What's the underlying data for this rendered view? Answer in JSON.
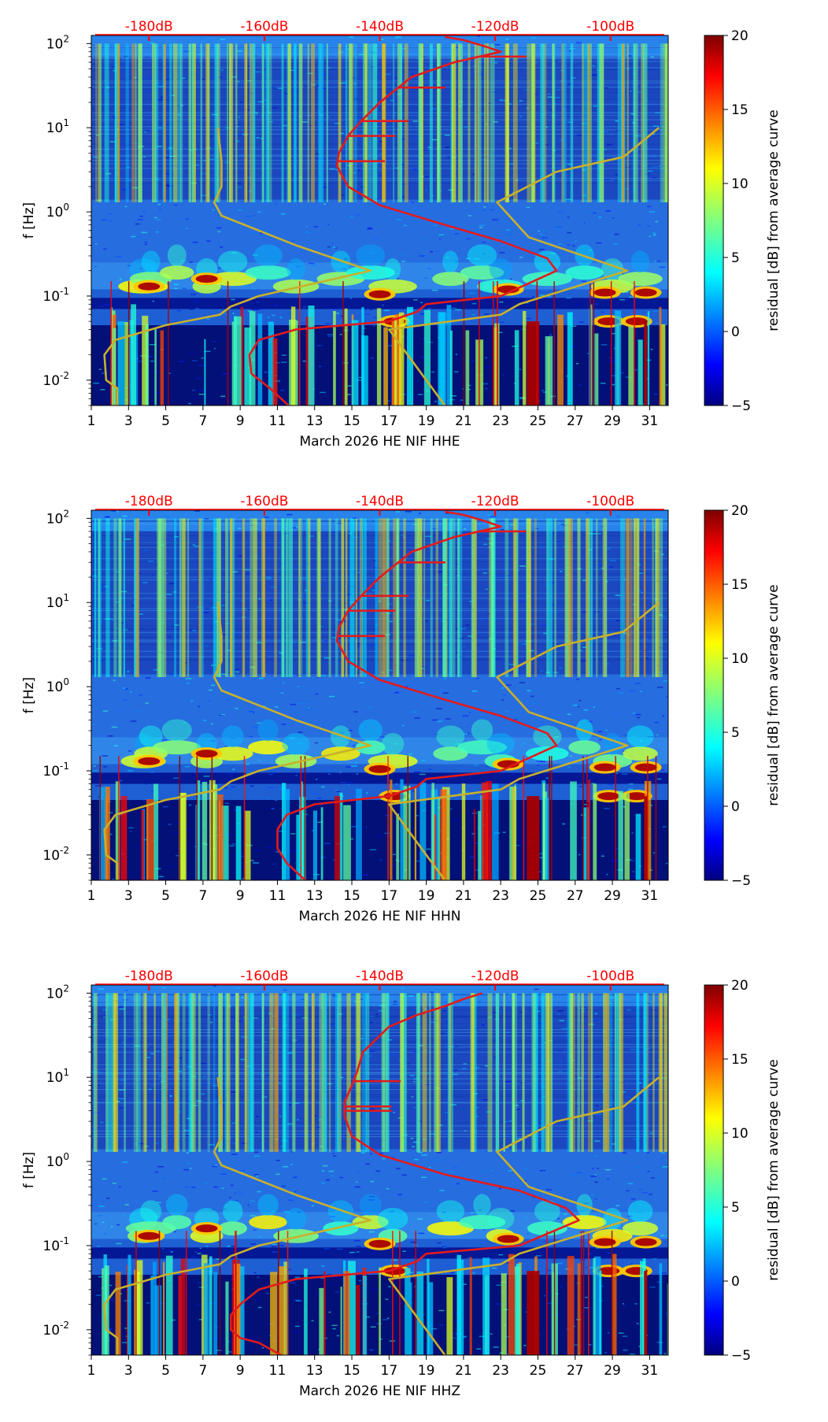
{
  "figure": {
    "colorbar_label": "residual [dB] from average curve",
    "colorbar_range": [
      -5,
      20
    ],
    "colorbar_ticks": [
      -5,
      0,
      5,
      10,
      15,
      20
    ],
    "colormap": [
      "#00007f",
      "#0000ff",
      "#007fff",
      "#00ffff",
      "#7fff7f",
      "#ffff00",
      "#ff7f00",
      "#ff0000",
      "#7f0000"
    ],
    "background_color": "#1f5fd4",
    "colors": {
      "db_axis": "#ff0000",
      "noise_model": "#c8b02c",
      "median_psd": "#e31a1c"
    }
  },
  "chart_data": [
    {
      "type": "heatmap",
      "xlabel": "March 2026 HE NIF  HHE",
      "ylabel": "f [Hz]",
      "x_range": [
        1,
        32
      ],
      "x_ticks": [
        1,
        3,
        5,
        7,
        9,
        11,
        13,
        15,
        17,
        19,
        21,
        23,
        25,
        27,
        29,
        31
      ],
      "y_range_hz": [
        0.005,
        125
      ],
      "y_ticks": [
        "10^-2",
        "10^-1",
        "10^0",
        "10^1",
        "10^2"
      ],
      "top_axis_labels": [
        "-180dB",
        "-160dB",
        "-140dB",
        "-120dB",
        "-100dB"
      ],
      "top_axis_positions_day": [
        4.1,
        10.3,
        16.5,
        22.7,
        28.9
      ],
      "low_noise_model": [
        [
          2.4,
          0.005
        ],
        [
          2.4,
          0.008
        ],
        [
          1.8,
          0.01
        ],
        [
          1.7,
          0.02
        ],
        [
          2.3,
          0.03
        ],
        [
          5.0,
          0.045
        ],
        [
          7.9,
          0.06
        ],
        [
          8.5,
          0.075
        ],
        [
          10.0,
          0.1
        ],
        [
          16.0,
          0.2
        ],
        [
          12.0,
          0.4
        ],
        [
          8.0,
          0.9
        ],
        [
          7.6,
          1.3
        ],
        [
          8.0,
          2.0
        ],
        [
          8.0,
          4.0
        ],
        [
          7.8,
          10
        ]
      ],
      "high_noise_model": [
        [
          20.0,
          0.005
        ],
        [
          17.0,
          0.04
        ],
        [
          23.0,
          0.06
        ],
        [
          24.0,
          0.08
        ],
        [
          29.8,
          0.2
        ],
        [
          24.5,
          0.5
        ],
        [
          22.8,
          1.3
        ],
        [
          26.0,
          3.0
        ],
        [
          29.6,
          4.5
        ],
        [
          31.5,
          10
        ]
      ],
      "median_psd": [
        [
          11.6,
          0.005
        ],
        [
          10.6,
          0.008
        ],
        [
          9.6,
          0.012
        ],
        [
          9.5,
          0.02
        ],
        [
          10.0,
          0.03
        ],
        [
          12.0,
          0.04
        ],
        [
          17.0,
          0.05
        ],
        [
          18.5,
          0.065
        ],
        [
          19.0,
          0.08
        ],
        [
          23.0,
          0.1
        ],
        [
          26.0,
          0.2
        ],
        [
          25.5,
          0.28
        ],
        [
          23.0,
          0.45
        ],
        [
          20.0,
          0.7
        ],
        [
          16.5,
          1.2
        ],
        [
          14.8,
          2.0
        ],
        [
          14.2,
          3.5
        ],
        [
          14.3,
          5.0
        ],
        [
          14.8,
          8.0
        ],
        [
          15.5,
          12.0
        ],
        [
          16.5,
          20.0
        ],
        [
          18.2,
          40.0
        ],
        [
          20.5,
          60.0
        ],
        [
          23.0,
          80.0
        ],
        [
          22.0,
          95.0
        ],
        [
          21.0,
          110.0
        ],
        [
          20.0,
          120.0
        ]
      ],
      "median_psd_spike_y": [
        4.0,
        8.0,
        12.0,
        30.0,
        70.0
      ]
    },
    {
      "type": "heatmap",
      "xlabel": "March 2026 HE NIF  HHN",
      "ylabel": "f [Hz]",
      "x_range": [
        1,
        32
      ],
      "x_ticks": [
        1,
        3,
        5,
        7,
        9,
        11,
        13,
        15,
        17,
        19,
        21,
        23,
        25,
        27,
        29,
        31
      ],
      "y_range_hz": [
        0.005,
        125
      ],
      "y_ticks": [
        "10^-2",
        "10^-1",
        "10^0",
        "10^1",
        "10^2"
      ],
      "top_axis_labels": [
        "-180dB",
        "-160dB",
        "-140dB",
        "-120dB",
        "-100dB"
      ],
      "top_axis_positions_day": [
        4.1,
        10.3,
        16.5,
        22.7,
        28.9
      ],
      "low_noise_model": [
        [
          2.4,
          0.005
        ],
        [
          2.4,
          0.008
        ],
        [
          1.8,
          0.01
        ],
        [
          1.7,
          0.02
        ],
        [
          2.3,
          0.03
        ],
        [
          5.0,
          0.045
        ],
        [
          7.9,
          0.06
        ],
        [
          8.5,
          0.075
        ],
        [
          10.0,
          0.1
        ],
        [
          16.0,
          0.2
        ],
        [
          12.0,
          0.4
        ],
        [
          8.0,
          0.9
        ],
        [
          7.6,
          1.3
        ],
        [
          8.0,
          2.0
        ],
        [
          8.0,
          4.0
        ],
        [
          7.8,
          10
        ]
      ],
      "high_noise_model": [
        [
          20.0,
          0.005
        ],
        [
          17.0,
          0.04
        ],
        [
          23.0,
          0.06
        ],
        [
          24.0,
          0.08
        ],
        [
          29.8,
          0.2
        ],
        [
          24.5,
          0.5
        ],
        [
          22.8,
          1.3
        ],
        [
          26.0,
          3.0
        ],
        [
          29.6,
          4.5
        ],
        [
          31.5,
          10
        ]
      ],
      "median_psd": [
        [
          12.5,
          0.005
        ],
        [
          11.5,
          0.008
        ],
        [
          11.0,
          0.012
        ],
        [
          11.0,
          0.02
        ],
        [
          11.5,
          0.03
        ],
        [
          13.0,
          0.04
        ],
        [
          17.0,
          0.05
        ],
        [
          18.5,
          0.065
        ],
        [
          19.0,
          0.08
        ],
        [
          23.0,
          0.1
        ],
        [
          26.0,
          0.2
        ],
        [
          25.5,
          0.28
        ],
        [
          23.0,
          0.45
        ],
        [
          20.0,
          0.7
        ],
        [
          16.5,
          1.2
        ],
        [
          14.8,
          2.0
        ],
        [
          14.2,
          3.5
        ],
        [
          14.3,
          5.0
        ],
        [
          14.8,
          8.0
        ],
        [
          15.5,
          12.0
        ],
        [
          16.5,
          20.0
        ],
        [
          18.2,
          40.0
        ],
        [
          20.5,
          60.0
        ],
        [
          23.0,
          80.0
        ],
        [
          22.0,
          95.0
        ],
        [
          21.0,
          110.0
        ],
        [
          20.0,
          120.0
        ]
      ],
      "median_psd_spike_y": [
        4.0,
        8.0,
        12.0,
        30.0,
        70.0
      ]
    },
    {
      "type": "heatmap",
      "xlabel": "March 2026 HE NIF  HHZ",
      "ylabel": "f [Hz]",
      "x_range": [
        1,
        32
      ],
      "x_ticks": [
        1,
        3,
        5,
        7,
        9,
        11,
        13,
        15,
        17,
        19,
        21,
        23,
        25,
        27,
        29,
        31
      ],
      "y_range_hz": [
        0.005,
        125
      ],
      "y_ticks": [
        "10^-2",
        "10^-1",
        "10^0",
        "10^1",
        "10^2"
      ],
      "top_axis_labels": [
        "-180dB",
        "-160dB",
        "-140dB",
        "-120dB",
        "-100dB"
      ],
      "top_axis_positions_day": [
        4.1,
        10.3,
        16.5,
        22.7,
        28.9
      ],
      "low_noise_model": [
        [
          2.4,
          0.005
        ],
        [
          2.4,
          0.008
        ],
        [
          1.8,
          0.01
        ],
        [
          1.7,
          0.02
        ],
        [
          2.3,
          0.03
        ],
        [
          5.0,
          0.045
        ],
        [
          7.9,
          0.06
        ],
        [
          8.5,
          0.075
        ],
        [
          10.0,
          0.1
        ],
        [
          16.0,
          0.2
        ],
        [
          12.0,
          0.4
        ],
        [
          8.0,
          0.9
        ],
        [
          7.6,
          1.3
        ],
        [
          8.0,
          2.0
        ],
        [
          8.0,
          4.0
        ],
        [
          7.8,
          10
        ]
      ],
      "high_noise_model": [
        [
          20.0,
          0.005
        ],
        [
          17.0,
          0.04
        ],
        [
          23.0,
          0.06
        ],
        [
          24.0,
          0.08
        ],
        [
          29.8,
          0.2
        ],
        [
          24.5,
          0.5
        ],
        [
          22.8,
          1.3
        ],
        [
          26.0,
          3.0
        ],
        [
          29.6,
          4.5
        ],
        [
          31.5,
          10
        ]
      ],
      "median_psd": [
        [
          11.2,
          0.005
        ],
        [
          10.0,
          0.007
        ],
        [
          9.0,
          0.008
        ],
        [
          8.5,
          0.01
        ],
        [
          8.5,
          0.015
        ],
        [
          9.0,
          0.02
        ],
        [
          10.0,
          0.03
        ],
        [
          12.0,
          0.04
        ],
        [
          17.0,
          0.05
        ],
        [
          18.5,
          0.065
        ],
        [
          19.0,
          0.08
        ],
        [
          24.0,
          0.1
        ],
        [
          27.2,
          0.2
        ],
        [
          26.5,
          0.28
        ],
        [
          24.0,
          0.45
        ],
        [
          20.0,
          0.7
        ],
        [
          16.5,
          1.2
        ],
        [
          15.0,
          2.0
        ],
        [
          14.6,
          3.5
        ],
        [
          14.6,
          5.0
        ],
        [
          15.0,
          8.0
        ],
        [
          15.3,
          12.0
        ],
        [
          15.6,
          20.0
        ],
        [
          17.0,
          40.0
        ],
        [
          18.5,
          55.0
        ],
        [
          20.0,
          70.0
        ],
        [
          21.0,
          85.0
        ],
        [
          22.0,
          100.0
        ]
      ],
      "median_psd_spike_y": [
        4.0,
        9.0,
        4.5
      ]
    }
  ]
}
